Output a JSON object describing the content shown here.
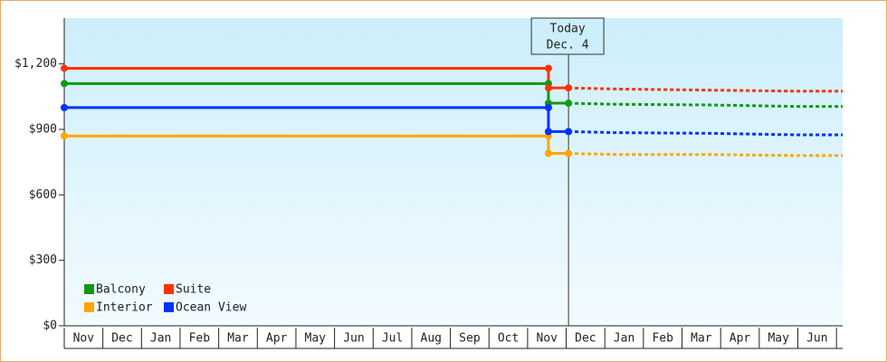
{
  "chart_data": {
    "type": "line",
    "categories": [
      "Nov",
      "Dec",
      "Jan",
      "Feb",
      "Mar",
      "Apr",
      "May",
      "Jun",
      "Jul",
      "Aug",
      "Sep",
      "Oct",
      "Nov",
      "Dec",
      "Jan",
      "Feb",
      "Mar",
      "Apr",
      "May",
      "Jun"
    ],
    "xlim": [
      0,
      20.16
    ],
    "ylim": [
      0,
      1410
    ],
    "yticks": [
      {
        "value": 0,
        "label": "$0"
      },
      {
        "value": 300,
        "label": "$300"
      },
      {
        "value": 600,
        "label": "$600"
      },
      {
        "value": 900,
        "label": "$900"
      },
      {
        "value": 1200,
        "label": "$1,200"
      }
    ],
    "today": {
      "title": "Today",
      "date": "Dec. 4",
      "x": 13.06
    },
    "series": [
      {
        "name": "Balcony",
        "color": "#119911",
        "x": [
          0,
          12.54,
          12.54,
          13.06
        ],
        "values": [
          1110,
          1110,
          1020,
          1020
        ],
        "forecast_x": [
          13.06,
          14.3,
          16.7,
          19.0,
          20.16
        ],
        "forecast_values": [
          1020,
          1015,
          1012,
          1005,
          1005
        ]
      },
      {
        "name": "Suite",
        "color": "#ff3300",
        "x": [
          0,
          12.54,
          12.54,
          13.06
        ],
        "values": [
          1180,
          1180,
          1090,
          1090
        ],
        "forecast_x": [
          13.06,
          14.3,
          16.7,
          19.0,
          20.16
        ],
        "forecast_values": [
          1090,
          1085,
          1080,
          1075,
          1075
        ]
      },
      {
        "name": "Interior",
        "color": "#ffa500",
        "x": [
          0,
          12.54,
          12.54,
          13.06
        ],
        "values": [
          870,
          870,
          790,
          790
        ],
        "forecast_x": [
          13.06,
          14.3,
          16.7,
          19.0,
          20.16
        ],
        "forecast_values": [
          790,
          785,
          785,
          780,
          780
        ]
      },
      {
        "name": "Ocean View",
        "color": "#0033ff",
        "x": [
          0,
          12.54,
          12.54,
          13.06
        ],
        "values": [
          1000,
          1000,
          890,
          890
        ],
        "forecast_x": [
          13.06,
          14.3,
          16.7,
          19.0,
          20.16
        ],
        "forecast_values": [
          890,
          885,
          882,
          875,
          875
        ]
      }
    ]
  }
}
